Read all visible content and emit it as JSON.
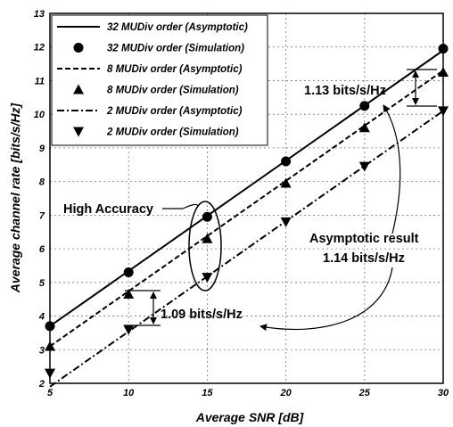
{
  "chart_data": {
    "type": "line",
    "xlabel": "Average SNR [dB]",
    "ylabel": "Average channel rate [bits/s/Hz]",
    "xlim": [
      5,
      30
    ],
    "ylim": [
      2,
      13
    ],
    "xticks": [
      5,
      10,
      15,
      20,
      25,
      30
    ],
    "yticks": [
      2,
      3,
      4,
      5,
      6,
      7,
      8,
      9,
      10,
      11,
      12,
      13
    ],
    "grid": true,
    "legend_position": "top-left",
    "series": [
      {
        "name": "32 MUDiv order (Asymptotic)",
        "kind": "line",
        "dash": "solid",
        "x": [
          5,
          30
        ],
        "y": [
          3.7,
          11.9
        ]
      },
      {
        "name": "32 MUDiv order (Simulation)",
        "kind": "marker",
        "marker": "circle",
        "x": [
          5,
          10,
          15,
          20,
          25,
          30
        ],
        "y": [
          3.7,
          5.3,
          6.95,
          8.6,
          10.25,
          11.95
        ]
      },
      {
        "name": "8 MUDiv order (Asymptotic)",
        "kind": "line",
        "dash": "dashed",
        "x": [
          5,
          30
        ],
        "y": [
          3.1,
          11.3
        ]
      },
      {
        "name": "8 MUDiv order (Simulation)",
        "kind": "marker",
        "marker": "triangle-up",
        "x": [
          5,
          10,
          15,
          20,
          25,
          30
        ],
        "y": [
          3.1,
          4.65,
          6.3,
          7.95,
          9.6,
          11.25
        ]
      },
      {
        "name": "2 MUDiv order (Asymptotic)",
        "kind": "line",
        "dash": "dashdot",
        "x": [
          5,
          30
        ],
        "y": [
          1.9,
          10.1
        ]
      },
      {
        "name": "2 MUDiv order (Simulation)",
        "kind": "marker",
        "marker": "triangle-down",
        "x": [
          5,
          10,
          15,
          20,
          25,
          30
        ],
        "y": [
          2.3,
          3.6,
          5.15,
          6.8,
          8.45,
          10.1
        ]
      }
    ],
    "annotations": [
      {
        "text": "1.13 bits/s/Hz"
      },
      {
        "text": "High Accuracy"
      },
      {
        "text": "Asymptotic result"
      },
      {
        "text": "1.14 bits/s/Hz"
      },
      {
        "text": "1.09 bits/s/Hz"
      }
    ]
  }
}
